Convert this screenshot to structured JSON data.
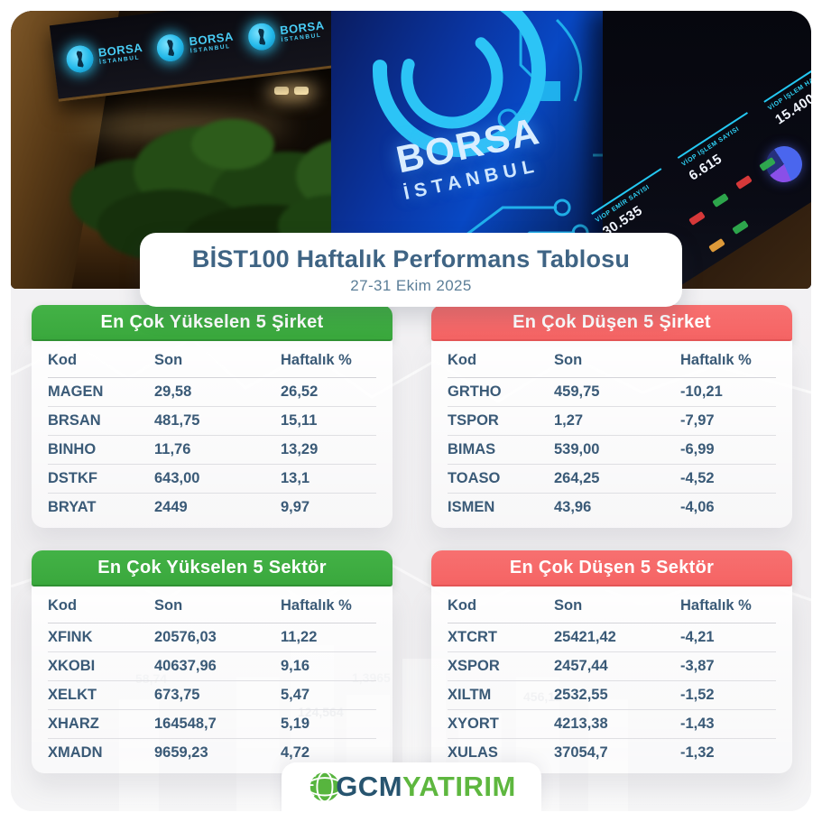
{
  "header": {
    "title": "BİST100 Haftalık Performans Tablosu",
    "date_range": "27-31 Ekim 2025"
  },
  "photo": {
    "sign_brand_line1": "BORSA",
    "sign_brand_line2": "İSTANBUL",
    "led_brand_line1": "BORSA",
    "led_brand_line2": "İSTANBUL",
    "board_stats": [
      {
        "label": "VİOP EMİR SAYISI",
        "value": "30.535"
      },
      {
        "label": "VİOP İŞLEM SAYISI",
        "value": "6.615"
      },
      {
        "label": "VİOP İŞLEM HACMİ",
        "value": "15.400"
      }
    ]
  },
  "chart_data": [
    {
      "type": "table",
      "id": "top-gainer-companies",
      "title": "En Çok Yükselen 5 Şirket",
      "accent": "#3aa83d",
      "columns": [
        "Kod",
        "Son",
        "Haftalık %"
      ],
      "rows": [
        [
          "MAGEN",
          "29,58",
          "26,52"
        ],
        [
          "BRSAN",
          "481,75",
          "15,11"
        ],
        [
          "BINHO",
          "11,76",
          "13,29"
        ],
        [
          "DSTKF",
          "643,00",
          "13,1"
        ],
        [
          "BRYAT",
          "2449",
          "9,97"
        ]
      ]
    },
    {
      "type": "table",
      "id": "top-loser-companies",
      "title": "En Çok Düşen 5 Şirket",
      "accent": "#f56464",
      "columns": [
        "Kod",
        "Son",
        "Haftalık %"
      ],
      "rows": [
        [
          "GRTHO",
          "459,75",
          "-10,21"
        ],
        [
          "TSPOR",
          "1,27",
          "-7,97"
        ],
        [
          "BIMAS",
          "539,00",
          "-6,99"
        ],
        [
          "TOASO",
          "264,25",
          "-4,52"
        ],
        [
          "ISMEN",
          "43,96",
          "-4,06"
        ]
      ]
    },
    {
      "type": "table",
      "id": "top-gainer-sectors",
      "title": "En Çok Yükselen 5 Sektör",
      "accent": "#3aa83d",
      "columns": [
        "Kod",
        "Son",
        "Haftalık %"
      ],
      "rows": [
        [
          "XFINK",
          "20576,03",
          "11,22"
        ],
        [
          "XKOBI",
          "40637,96",
          "9,16"
        ],
        [
          "XELKT",
          "673,75",
          "5,47"
        ],
        [
          "XHARZ",
          "164548,7",
          "5,19"
        ],
        [
          "XMADN",
          "9659,23",
          "4,72"
        ]
      ]
    },
    {
      "type": "table",
      "id": "top-loser-sectors",
      "title": "En Çok Düşen 5 Sektör",
      "accent": "#f56464",
      "columns": [
        "Kod",
        "Son",
        "Haftalık %"
      ],
      "rows": [
        [
          "XTCRT",
          "25421,42",
          "-4,21"
        ],
        [
          "XSPOR",
          "2457,44",
          "-3,87"
        ],
        [
          "XILTM",
          "2532,55",
          "-1,52"
        ],
        [
          "XYORT",
          "4213,38",
          "-1,43"
        ],
        [
          "XULAS",
          "37054,7",
          "-1,32"
        ]
      ]
    }
  ],
  "background": {
    "watermark_numbers": [
      "58,74",
      "1,3965",
      "124,564",
      "456,12"
    ]
  },
  "footer": {
    "logo_part1": "GCM",
    "logo_part2": "YATIRIM"
  },
  "colors": {
    "green": "#3aa83d",
    "red": "#f56464",
    "table_text": "#3a5a77",
    "title_text": "#3f6484",
    "cyan": "#2cc4f6",
    "logo_blue": "#27546f",
    "logo_green": "#5eb73f"
  }
}
